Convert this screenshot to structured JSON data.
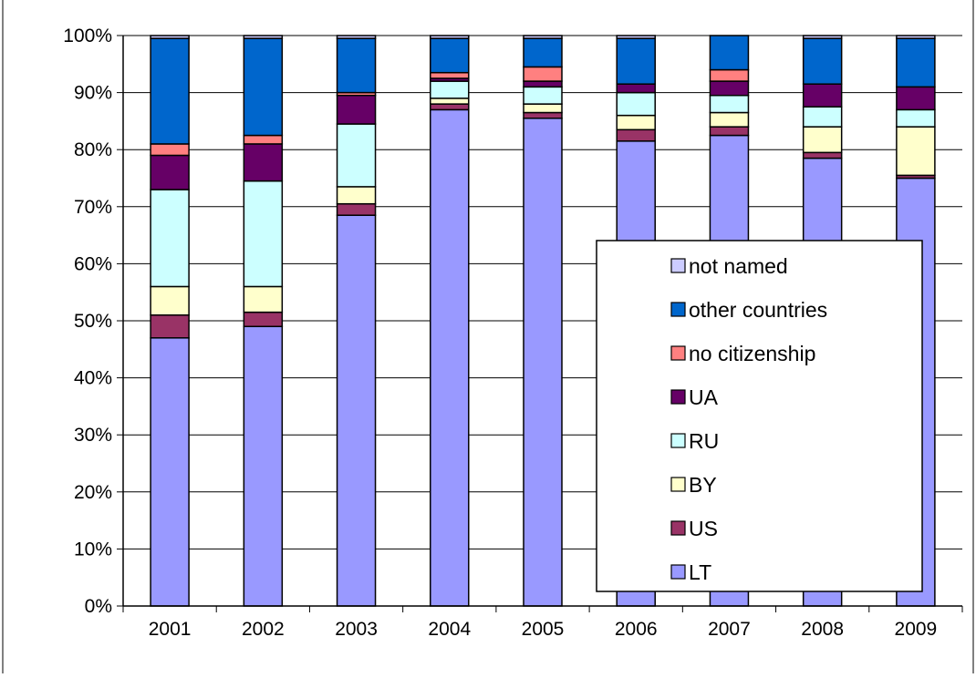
{
  "chart_data": {
    "type": "bar",
    "stacked": true,
    "percent_stacked": true,
    "categories": [
      "2001",
      "2002",
      "2003",
      "2004",
      "2005",
      "2006",
      "2007",
      "2008",
      "2009"
    ],
    "series": [
      {
        "name": "LT",
        "color": "#9999FF",
        "values": [
          47,
          49,
          68.5,
          87,
          85.5,
          81.5,
          82.5,
          78.5,
          75
        ]
      },
      {
        "name": "US",
        "color": "#993366",
        "values": [
          4,
          2.5,
          2,
          1,
          1,
          2,
          1.5,
          1,
          0.5
        ]
      },
      {
        "name": "BY",
        "color": "#FFFFCC",
        "values": [
          5,
          4.5,
          3,
          1,
          1.5,
          2.5,
          2.5,
          4.5,
          8.5
        ]
      },
      {
        "name": "RU",
        "color": "#CCFFFF",
        "values": [
          17,
          18.5,
          11,
          3,
          3,
          4,
          3,
          3.5,
          3
        ]
      },
      {
        "name": "UA",
        "color": "#660066",
        "values": [
          6,
          6.5,
          5,
          0.5,
          1,
          1.5,
          2.5,
          4,
          4
        ]
      },
      {
        "name": "no citizenship",
        "color": "#FF8080",
        "values": [
          2,
          1.5,
          0.5,
          1,
          2.5,
          0,
          2,
          0,
          0
        ]
      },
      {
        "name": "other countries",
        "color": "#0066CC",
        "values": [
          18.5,
          17,
          9.5,
          6,
          5,
          8,
          6,
          8,
          8.5
        ]
      },
      {
        "name": "not named",
        "color": "#CCCCFF",
        "values": [
          0.5,
          0.5,
          0.5,
          0.5,
          0.5,
          0.5,
          0,
          0.5,
          0.5
        ]
      }
    ],
    "y_ticks": [
      "0%",
      "10%",
      "20%",
      "30%",
      "40%",
      "50%",
      "60%",
      "70%",
      "80%",
      "90%",
      "100%"
    ],
    "ylim": [
      0,
      100
    ],
    "grid": true,
    "legend": {
      "placement": "inside-bottom-right",
      "order": [
        "not named",
        "other countries",
        "no citizenship",
        "UA",
        "RU",
        "BY",
        "US",
        "LT"
      ]
    }
  }
}
